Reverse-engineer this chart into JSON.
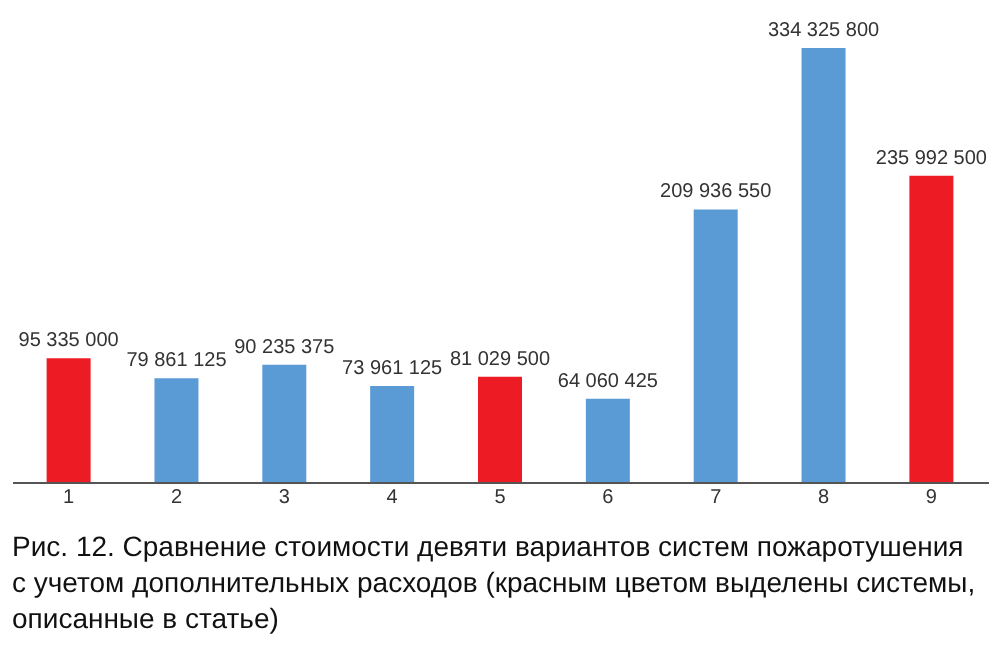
{
  "chart_data": {
    "type": "bar",
    "title": "Рис. 12. Сравнение стоимости девяти вариантов систем пожаротушения с учетом дополнительных расходов (красным цветом выделены системы, описанные в статье)",
    "categories": [
      "1",
      "2",
      "3",
      "4",
      "5",
      "6",
      "7",
      "8",
      "9"
    ],
    "values": [
      95335000,
      79861125,
      90235375,
      73961125,
      81029500,
      64060425,
      209936550,
      334325800,
      235992500
    ],
    "colors": [
      "#ed1c24",
      "#5b9bd5",
      "#5b9bd5",
      "#5b9bd5",
      "#ed1c24",
      "#5b9bd5",
      "#5b9bd5",
      "#5b9bd5",
      "#ed1c24"
    ],
    "data_labels": true
  }
}
